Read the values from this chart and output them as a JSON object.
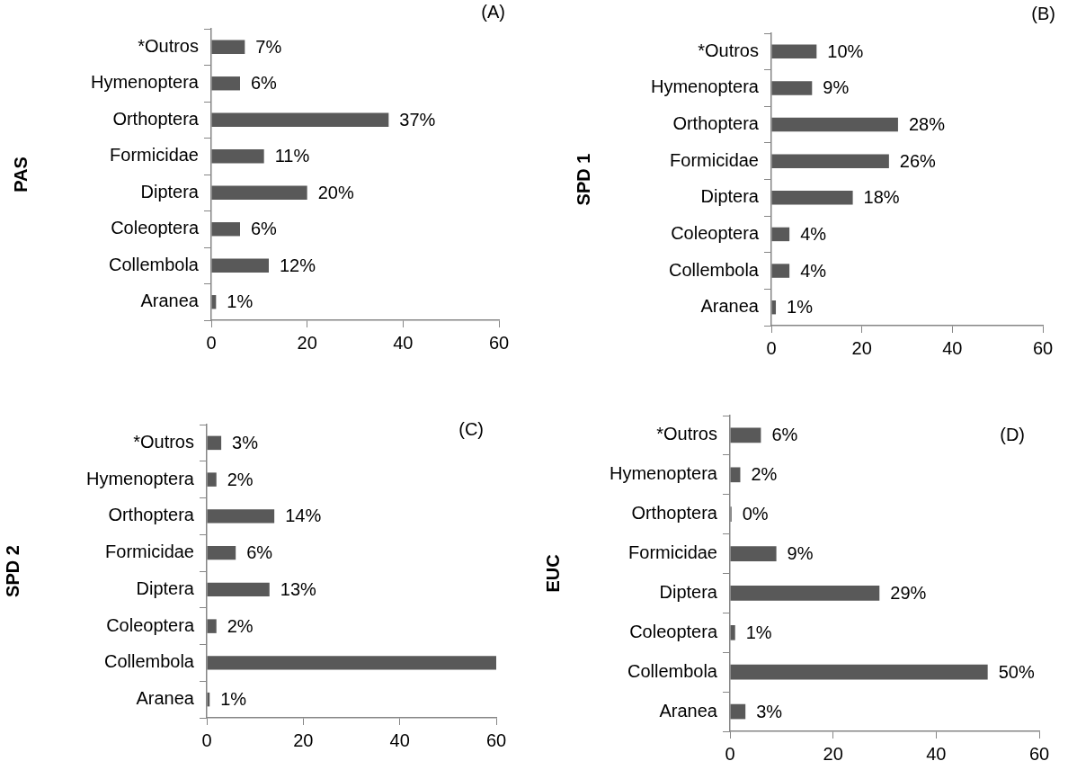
{
  "chart_data": [
    {
      "type": "bar",
      "orientation": "horizontal",
      "ylabel": "PAS",
      "annotations": [
        "(A)"
      ],
      "categories": [
        "*Outros",
        "Hymenoptera",
        "Orthoptera",
        "Formicidae",
        "Diptera",
        "Coleoptera",
        "Collembola",
        "Aranea"
      ],
      "values": [
        7,
        6,
        37,
        11,
        20,
        6,
        12,
        1
      ],
      "value_labels": [
        "7%",
        "6%",
        "37%",
        "11%",
        "20%",
        "6%",
        "12%",
        "1%"
      ],
      "color": "#595959",
      "xlim": [
        0,
        60
      ],
      "xticks": [
        0,
        20,
        40,
        60
      ],
      "grid": false
    },
    {
      "type": "bar",
      "orientation": "horizontal",
      "ylabel": "SPD 1",
      "annotations": [
        "(B)"
      ],
      "categories": [
        "*Outros",
        "Hymenoptera",
        "Orthoptera",
        "Formicidae",
        "Diptera",
        "Coleoptera",
        "Collembola",
        "Aranea"
      ],
      "values": [
        10,
        9,
        28,
        26,
        18,
        4,
        4,
        1
      ],
      "value_labels": [
        "10%",
        "9%",
        "28%",
        "26%",
        "18%",
        "4%",
        "4%",
        "1%"
      ],
      "color": "#595959",
      "xlim": [
        0,
        60
      ],
      "xticks": [
        0,
        20,
        40,
        60
      ],
      "grid": false
    },
    {
      "type": "bar",
      "orientation": "horizontal",
      "ylabel": "SPD 2",
      "annotations": [
        "(C)"
      ],
      "categories": [
        "*Outros",
        "Hymenoptera",
        "Orthoptera",
        "Formicidae",
        "Diptera",
        "Coleoptera",
        "Collembola",
        "Aranea"
      ],
      "values": [
        3,
        2,
        14,
        6,
        13,
        2,
        60,
        0.6
      ],
      "value_labels": [
        "3%",
        "2%",
        "14%",
        "6%",
        "13%",
        "2%",
        null,
        "1%"
      ],
      "color": "#595959",
      "xlim": [
        0,
        60
      ],
      "xticks": [
        0,
        20,
        40,
        60
      ],
      "grid": false
    },
    {
      "type": "bar",
      "orientation": "horizontal",
      "ylabel": "EUC",
      "annotations": [
        "(D)"
      ],
      "categories": [
        "*Outros",
        "Hymenoptera",
        "Orthoptera",
        "Formicidae",
        "Diptera",
        "Coleoptera",
        "Collembola",
        "Aranea"
      ],
      "values": [
        6,
        2,
        0.3,
        9,
        29,
        1,
        50,
        3
      ],
      "value_labels": [
        "6%",
        "2%",
        "0%",
        "9%",
        "29%",
        "1%",
        "50%",
        "3%"
      ],
      "color": "#595959",
      "xlim": [
        0,
        60
      ],
      "xticks": [
        0,
        20,
        40,
        60
      ],
      "grid": false
    }
  ]
}
